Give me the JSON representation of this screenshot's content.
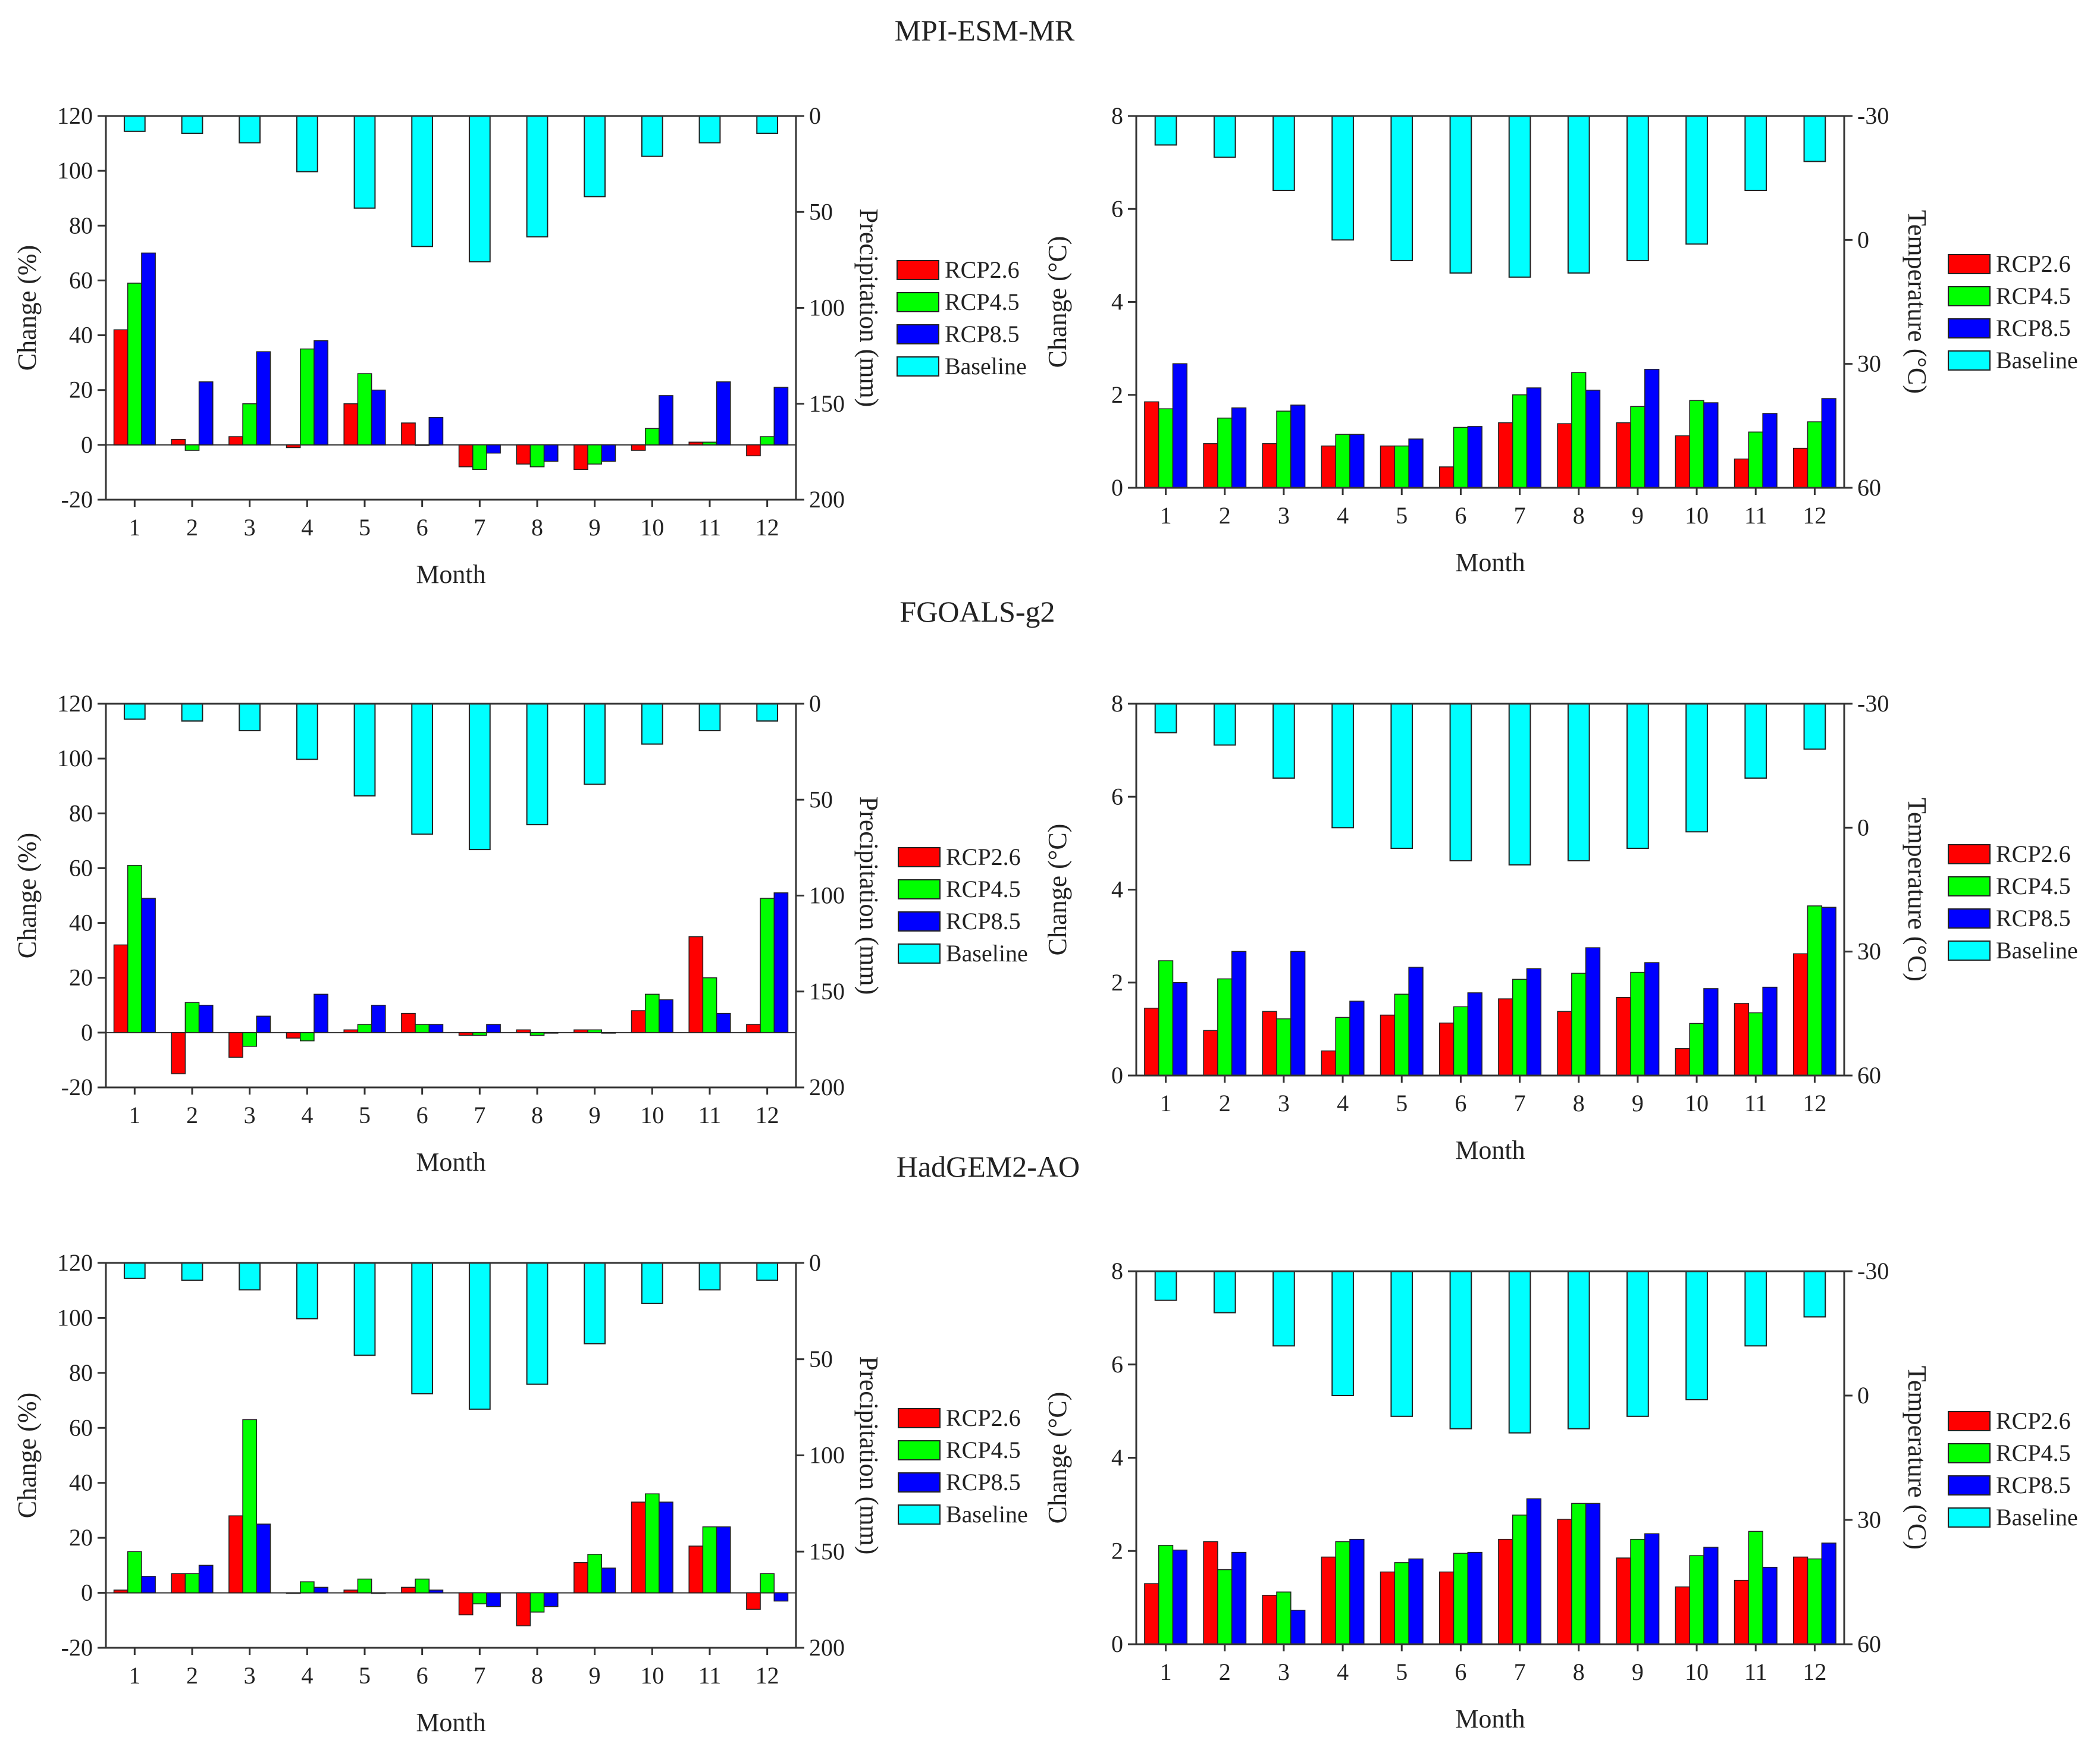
{
  "colors": {
    "RCP2.6": "#ff0000",
    "RCP4.5": "#00ff00",
    "RCP8.5": "#0000ff",
    "Baseline": "#00ffff",
    "axis": "#333333"
  },
  "models": [
    {
      "name": "MPI-ESM-MR"
    },
    {
      "name": "FGOALS-g2"
    },
    {
      "name": "HadGEM2-AO"
    }
  ],
  "chart_data": [
    {
      "id": "mpi-precip",
      "model": "MPI-ESM-MR",
      "variable": "precipitation",
      "type": "bar",
      "title": "",
      "categories": [
        "1",
        "2",
        "3",
        "4",
        "5",
        "6",
        "7",
        "8",
        "9",
        "10",
        "11",
        "12"
      ],
      "xlabel": "Month",
      "ylabel": "Change (%)",
      "y2label": "Precipitation (mm)",
      "ylim": [
        -20,
        120
      ],
      "yticks": [
        "-20",
        "0",
        "20",
        "40",
        "60",
        "80",
        "100",
        "120"
      ],
      "y2lim": [
        0,
        200
      ],
      "y2ticks": [
        "0",
        "50",
        "100",
        "150",
        "200"
      ],
      "y2_inverted": true,
      "series": [
        {
          "name": "RCP2.6",
          "values": [
            42,
            2,
            3,
            -1,
            15,
            8,
            -8,
            -7,
            -9,
            -2,
            1,
            -4
          ]
        },
        {
          "name": "RCP4.5",
          "values": [
            59,
            -2,
            15,
            35,
            26,
            0,
            -9,
            -8,
            -7,
            6,
            1,
            3
          ]
        },
        {
          "name": "RCP8.5",
          "values": [
            70,
            23,
            34,
            38,
            20,
            10,
            -3,
            -6,
            -6,
            18,
            23,
            21
          ]
        }
      ],
      "baseline": {
        "name": "Baseline",
        "values": [
          8,
          9,
          14,
          29,
          48,
          68,
          76,
          63,
          42,
          21,
          14,
          9
        ]
      }
    },
    {
      "id": "mpi-temp",
      "model": "MPI-ESM-MR",
      "variable": "temperature",
      "type": "bar",
      "title": "",
      "categories": [
        "1",
        "2",
        "3",
        "4",
        "5",
        "6",
        "7",
        "8",
        "9",
        "10",
        "11",
        "12"
      ],
      "xlabel": "Month",
      "ylabel": "Change (°C)",
      "y2label": "Temperature (°C)",
      "ylim": [
        0,
        8
      ],
      "yticks": [
        "0",
        "2",
        "4",
        "6",
        "8"
      ],
      "y2lim": [
        -30,
        60
      ],
      "y2ticks": [
        "-30",
        "0",
        "30",
        "60"
      ],
      "y2_inverted": true,
      "series": [
        {
          "name": "RCP2.6",
          "values": [
            1.85,
            0.95,
            0.95,
            0.9,
            0.9,
            0.45,
            1.4,
            1.38,
            1.4,
            1.12,
            0.62,
            0.85
          ]
        },
        {
          "name": "RCP4.5",
          "values": [
            1.7,
            1.5,
            1.65,
            1.15,
            0.9,
            1.3,
            2.0,
            2.48,
            1.75,
            1.88,
            1.2,
            1.42
          ]
        },
        {
          "name": "RCP8.5",
          "values": [
            2.67,
            1.72,
            1.78,
            1.15,
            1.05,
            1.32,
            2.15,
            2.1,
            2.55,
            1.83,
            1.6,
            1.92
          ]
        }
      ],
      "baseline": {
        "name": "Baseline",
        "values": [
          -23,
          -20,
          -12,
          0,
          5,
          8,
          9,
          8,
          5,
          1,
          -12,
          -19
        ]
      }
    },
    {
      "id": "fgoals-precip",
      "model": "FGOALS-g2",
      "variable": "precipitation",
      "type": "bar",
      "title": "",
      "categories": [
        "1",
        "2",
        "3",
        "4",
        "5",
        "6",
        "7",
        "8",
        "9",
        "10",
        "11",
        "12"
      ],
      "xlabel": "Month",
      "ylabel": "Change (%)",
      "y2label": "Precipitation (mm)",
      "ylim": [
        -20,
        120
      ],
      "yticks": [
        "-20",
        "0",
        "20",
        "40",
        "60",
        "80",
        "100",
        "120"
      ],
      "y2lim": [
        0,
        200
      ],
      "y2ticks": [
        "0",
        "50",
        "100",
        "150",
        "200"
      ],
      "y2_inverted": true,
      "series": [
        {
          "name": "RCP2.6",
          "values": [
            32,
            -15,
            -9,
            -2,
            1,
            7,
            -1,
            1,
            1,
            8,
            35,
            3
          ]
        },
        {
          "name": "RCP4.5",
          "values": [
            61,
            11,
            -5,
            -3,
            3,
            3,
            -1,
            -1,
            1,
            14,
            20,
            49
          ]
        },
        {
          "name": "RCP8.5",
          "values": [
            49,
            10,
            6,
            14,
            10,
            3,
            3,
            0,
            0,
            12,
            7,
            51
          ]
        }
      ],
      "baseline": {
        "name": "Baseline",
        "values": [
          8,
          9,
          14,
          29,
          48,
          68,
          76,
          63,
          42,
          21,
          14,
          9
        ]
      }
    },
    {
      "id": "fgoals-temp",
      "model": "FGOALS-g2",
      "variable": "temperature",
      "type": "bar",
      "title": "",
      "categories": [
        "1",
        "2",
        "3",
        "4",
        "5",
        "6",
        "7",
        "8",
        "9",
        "10",
        "11",
        "12"
      ],
      "xlabel": "Month",
      "ylabel": "Change (°C)",
      "y2label": "Temperature (°C)",
      "ylim": [
        0,
        8
      ],
      "yticks": [
        "0",
        "2",
        "4",
        "6",
        "8"
      ],
      "y2lim": [
        -30,
        60
      ],
      "y2ticks": [
        "-30",
        "0",
        "30",
        "60"
      ],
      "y2_inverted": true,
      "series": [
        {
          "name": "RCP2.6",
          "values": [
            1.45,
            0.97,
            1.38,
            0.53,
            1.3,
            1.13,
            1.65,
            1.38,
            1.68,
            0.58,
            1.55,
            2.62
          ]
        },
        {
          "name": "RCP4.5",
          "values": [
            2.47,
            2.08,
            1.22,
            1.25,
            1.75,
            1.48,
            2.07,
            2.2,
            2.22,
            1.12,
            1.35,
            3.65
          ]
        },
        {
          "name": "RCP8.5",
          "values": [
            2.0,
            2.67,
            2.67,
            1.6,
            2.33,
            1.78,
            2.3,
            2.75,
            2.43,
            1.87,
            1.9,
            3.62
          ]
        }
      ],
      "baseline": {
        "name": "Baseline",
        "values": [
          -23,
          -20,
          -12,
          0,
          5,
          8,
          9,
          8,
          5,
          1,
          -12,
          -19
        ]
      }
    },
    {
      "id": "hadgem-precip",
      "model": "HadGEM2-AO",
      "variable": "precipitation",
      "type": "bar",
      "title": "",
      "categories": [
        "1",
        "2",
        "3",
        "4",
        "5",
        "6",
        "7",
        "8",
        "9",
        "10",
        "11",
        "12"
      ],
      "xlabel": "Month",
      "ylabel": "Change (%)",
      "y2label": "Precipitation (mm)",
      "ylim": [
        -20,
        120
      ],
      "yticks": [
        "-20",
        "0",
        "20",
        "40",
        "60",
        "80",
        "100",
        "120"
      ],
      "y2lim": [
        0,
        200
      ],
      "y2ticks": [
        "0",
        "50",
        "100",
        "150",
        "200"
      ],
      "y2_inverted": true,
      "series": [
        {
          "name": "RCP2.6",
          "values": [
            1,
            7,
            28,
            0,
            1,
            2,
            -8,
            -12,
            11,
            33,
            17,
            -6
          ]
        },
        {
          "name": "RCP4.5",
          "values": [
            15,
            7,
            63,
            4,
            5,
            5,
            -4,
            -7,
            14,
            36,
            24,
            7
          ]
        },
        {
          "name": "RCP8.5",
          "values": [
            6,
            10,
            25,
            2,
            0,
            1,
            -5,
            -5,
            9,
            33,
            24,
            -3
          ]
        }
      ],
      "baseline": {
        "name": "Baseline",
        "values": [
          8,
          9,
          14,
          29,
          48,
          68,
          76,
          63,
          42,
          21,
          14,
          9
        ]
      }
    },
    {
      "id": "hadgem-temp",
      "model": "HadGEM2-AO",
      "variable": "temperature",
      "type": "bar",
      "title": "",
      "categories": [
        "1",
        "2",
        "3",
        "4",
        "5",
        "6",
        "7",
        "8",
        "9",
        "10",
        "11",
        "12"
      ],
      "xlabel": "Month",
      "ylabel": "Change (°C)",
      "y2label": "Temperature (°C)",
      "ylim": [
        0,
        8
      ],
      "yticks": [
        "0",
        "2",
        "4",
        "6",
        "8"
      ],
      "y2lim": [
        -30,
        60
      ],
      "y2ticks": [
        "-30",
        "0",
        "30",
        "60"
      ],
      "y2_inverted": true,
      "series": [
        {
          "name": "RCP2.6",
          "values": [
            1.3,
            2.2,
            1.05,
            1.87,
            1.55,
            1.55,
            2.25,
            2.68,
            1.85,
            1.23,
            1.37,
            1.87
          ]
        },
        {
          "name": "RCP4.5",
          "values": [
            2.12,
            1.6,
            1.12,
            2.2,
            1.75,
            1.95,
            2.77,
            3.02,
            2.25,
            1.9,
            2.42,
            1.83
          ]
        },
        {
          "name": "RCP8.5",
          "values": [
            2.02,
            1.97,
            0.73,
            2.25,
            1.83,
            1.97,
            3.12,
            3.02,
            2.37,
            2.08,
            1.65,
            2.17
          ]
        }
      ],
      "baseline": {
        "name": "Baseline",
        "values": [
          -23,
          -20,
          -12,
          0,
          5,
          8,
          9,
          8,
          5,
          1,
          -12,
          -19
        ]
      }
    }
  ]
}
